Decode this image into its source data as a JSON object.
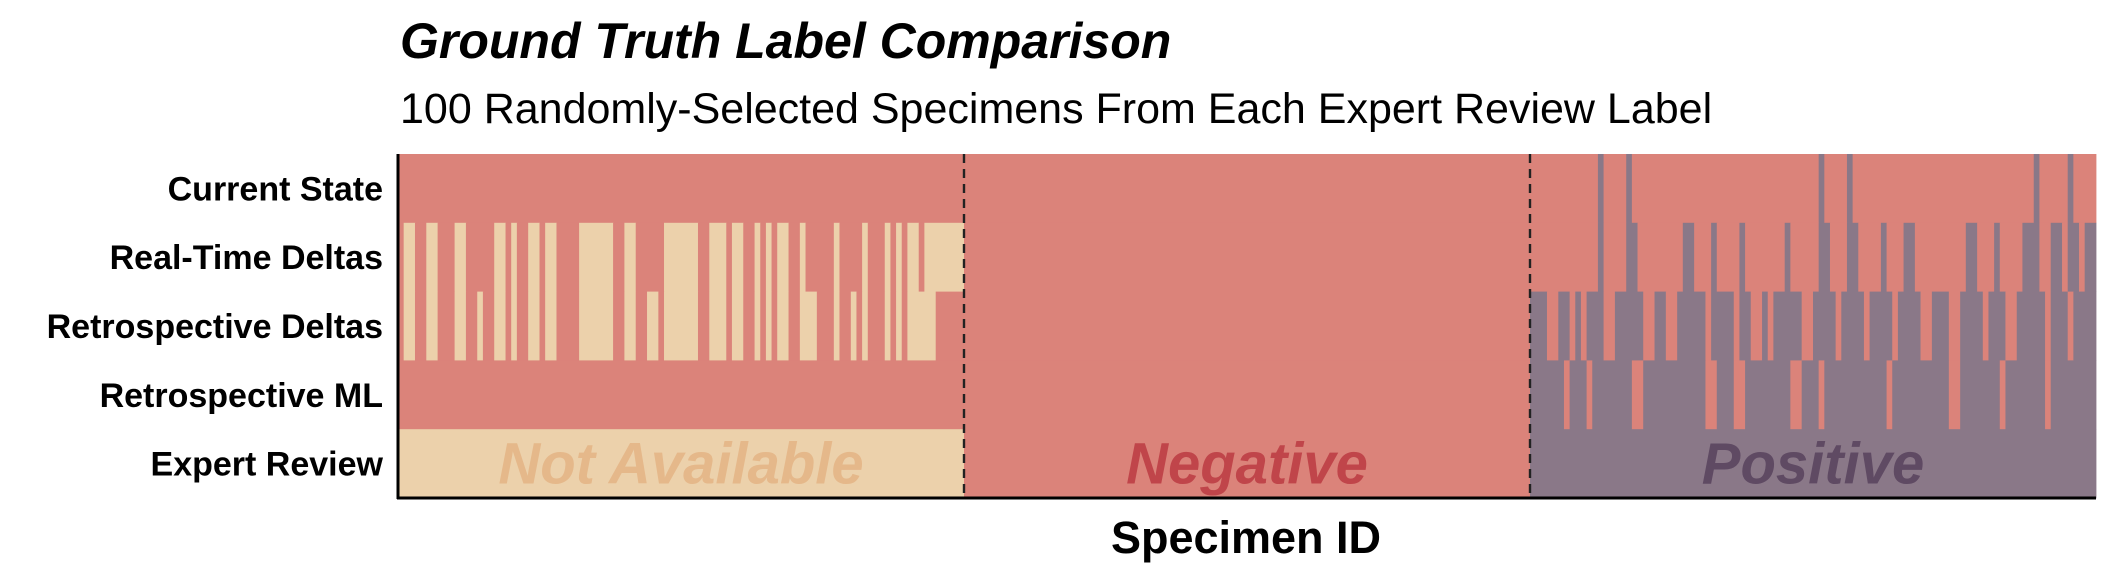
{
  "chart_data": {
    "type": "heatmap",
    "title": "Ground Truth Label Comparison",
    "subtitle": "100 Randomly-Selected Specimens From Each Expert Review Label",
    "xlabel": "Specimen ID",
    "ylabel": "",
    "rows": [
      "Current State",
      "Real-Time Deltas",
      "Retrospective Deltas",
      "Retrospective ML",
      "Expert Review"
    ],
    "categories": [
      "Not Available",
      "Negative",
      "Positive"
    ],
    "colors": {
      "Not Available": "#ecd1ab",
      "Negative": "#db837a",
      "Positive": "#8a7888"
    },
    "label_colors": {
      "Not Available": "#e5b88a",
      "Negative": "#c0454a",
      "Positive": "#5f4a63"
    },
    "specimens_per_group": 100,
    "groups": [
      {
        "expert_review": "Not Available",
        "current_state": "Negative",
        "retrospective_ml": "Negative",
        "delta_not_available": [
          [
            1,
            2
          ],
          [
            5,
            6
          ],
          [
            10,
            11
          ],
          [
            14,
            14
          ],
          [
            17,
            18
          ],
          [
            20,
            20
          ],
          [
            23,
            24
          ],
          [
            26,
            27
          ],
          [
            32,
            37
          ],
          [
            40,
            41
          ],
          [
            44,
            45
          ],
          [
            47,
            52
          ],
          [
            55,
            57
          ],
          [
            59,
            60
          ],
          [
            63,
            63
          ],
          [
            65,
            65
          ],
          [
            67,
            68
          ],
          [
            71,
            72
          ],
          [
            73,
            73
          ],
          [
            77,
            77
          ],
          [
            80,
            80
          ],
          [
            82,
            82
          ],
          [
            86,
            86
          ],
          [
            88,
            88
          ],
          [
            90,
            91
          ],
          [
            92,
            92
          ],
          [
            93,
            99
          ]
        ],
        "realtime_only_negative": [
          [
            [
              14,
              14
            ],
            [
              44,
              45
            ],
            [
              72,
              73
            ],
            [
              80,
              80
            ],
            [
              92,
              92
            ]
          ],
          [
            [
              95,
              99
            ]
          ]
        ]
      },
      {
        "expert_review": "Negative",
        "current_state": "Negative",
        "realtime_deltas": "Negative",
        "retrospective_deltas": "Negative",
        "retrospective_ml": "Negative"
      },
      {
        "expert_review": "Positive",
        "current_state_positive": [
          [
            12,
            12
          ],
          [
            17,
            17
          ],
          [
            51,
            51
          ],
          [
            56,
            56
          ],
          [
            89,
            89
          ],
          [
            95,
            95
          ]
        ],
        "realtime_deltas_positive": [
          [
            12,
            12
          ],
          [
            17,
            18
          ],
          [
            27,
            28
          ],
          [
            32,
            32
          ],
          [
            37,
            37
          ],
          [
            45,
            45
          ],
          [
            51,
            52
          ],
          [
            56,
            57
          ],
          [
            62,
            62
          ],
          [
            66,
            67
          ],
          [
            77,
            78
          ],
          [
            82,
            82
          ],
          [
            87,
            89
          ],
          [
            92,
            93
          ],
          [
            95,
            96
          ],
          [
            98,
            99
          ]
        ],
        "retrospective_deltas_positive": [
          [
            0,
            2
          ],
          [
            5,
            6
          ],
          [
            8,
            8
          ],
          [
            10,
            12
          ],
          [
            15,
            19
          ],
          [
            22,
            23
          ],
          [
            26,
            30
          ],
          [
            32,
            35
          ],
          [
            37,
            38
          ],
          [
            41,
            41
          ],
          [
            43,
            47
          ],
          [
            50,
            53
          ],
          [
            55,
            58
          ],
          [
            60,
            63
          ],
          [
            65,
            68
          ],
          [
            71,
            73
          ],
          [
            76,
            79
          ],
          [
            81,
            83
          ],
          [
            86,
            90
          ],
          [
            92,
            94
          ],
          [
            96,
            99
          ]
        ],
        "retrospective_ml_positive": [
          [
            0,
            5
          ],
          [
            7,
            9
          ],
          [
            11,
            17
          ],
          [
            20,
            30
          ],
          [
            33,
            35
          ],
          [
            38,
            45
          ],
          [
            48,
            50
          ],
          [
            52,
            62
          ],
          [
            64,
            73
          ],
          [
            76,
            82
          ],
          [
            84,
            90
          ],
          [
            92,
            99
          ]
        ]
      }
    ]
  }
}
